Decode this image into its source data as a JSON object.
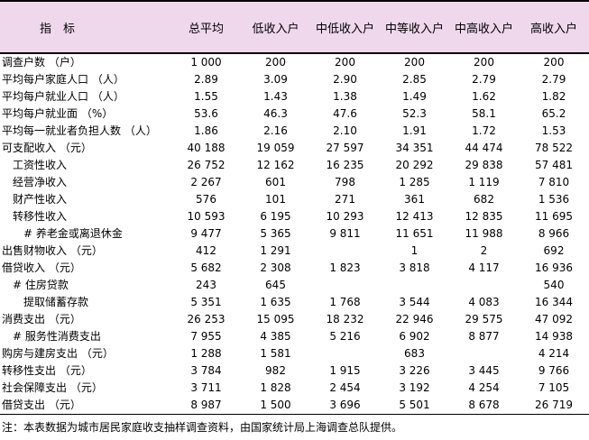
{
  "table": {
    "indicator_header": "指　标",
    "columns": [
      "总平均",
      "低收入户",
      "中低收入户",
      "中等收入户",
      "中高收入户",
      "高收入户"
    ],
    "rows": [
      {
        "label": "调查户数 （户）",
        "indent": 0,
        "values": [
          "1 000",
          "200",
          "200",
          "200",
          "200",
          "200"
        ]
      },
      {
        "label": "平均每户家庭人口 （人）",
        "indent": 0,
        "values": [
          "2.89",
          "3.09",
          "2.90",
          "2.85",
          "2.79",
          "2.79"
        ]
      },
      {
        "label": "平均每户就业人口 （人）",
        "indent": 0,
        "values": [
          "1.55",
          "1.43",
          "1.38",
          "1.49",
          "1.62",
          "1.82"
        ]
      },
      {
        "label": "平均每户就业面 （%）",
        "indent": 0,
        "values": [
          "53.6",
          "46.3",
          "47.6",
          "52.3",
          "58.1",
          "65.2"
        ]
      },
      {
        "label": "平均每一就业者负担人数 （人）",
        "indent": 0,
        "values": [
          "1.86",
          "2.16",
          "2.10",
          "1.91",
          "1.72",
          "1.53"
        ]
      },
      {
        "label": "可支配收入 （元）",
        "indent": 0,
        "values": [
          "40 188",
          "19 059",
          "27 597",
          "34 351",
          "44 474",
          "78 522"
        ]
      },
      {
        "label": "工资性收入",
        "indent": 1,
        "values": [
          "26 752",
          "12 162",
          "16 235",
          "20 292",
          "29 838",
          "57 481"
        ]
      },
      {
        "label": "经营净收入",
        "indent": 1,
        "values": [
          "2 267",
          "601",
          "798",
          "1 285",
          "1 119",
          "7 810"
        ]
      },
      {
        "label": "财产性收入",
        "indent": 1,
        "values": [
          "576",
          "101",
          "271",
          "361",
          "682",
          "1 536"
        ]
      },
      {
        "label": "转移性收入",
        "indent": 1,
        "values": [
          "10 593",
          "6 195",
          "10 293",
          "12 413",
          "12 835",
          "11 695"
        ]
      },
      {
        "label": "# 养老金或离退休金",
        "indent": 2,
        "values": [
          "9 477",
          "5 365",
          "9 811",
          "11 651",
          "11 988",
          "8 966"
        ]
      },
      {
        "label": "出售财物收入 （元）",
        "indent": 0,
        "values": [
          "412",
          "1 291",
          "",
          "1",
          "2",
          "692"
        ]
      },
      {
        "label": "借贷收入 （元）",
        "indent": 0,
        "values": [
          "5 682",
          "2 308",
          "1 823",
          "3 818",
          "4 117",
          "16 936"
        ]
      },
      {
        "label": "# 住房贷款",
        "indent": 1,
        "values": [
          "243",
          "645",
          "",
          "",
          "",
          "540"
        ]
      },
      {
        "label": "提取储蓄存款",
        "indent": 2,
        "values": [
          "5 351",
          "1 635",
          "1 768",
          "3 544",
          "4 083",
          "16 344"
        ]
      },
      {
        "label": "消费支出 （元）",
        "indent": 0,
        "values": [
          "26 253",
          "15 095",
          "18 232",
          "22 946",
          "29 575",
          "47 092"
        ]
      },
      {
        "label": "# 服务性消费支出",
        "indent": 1,
        "values": [
          "7 955",
          "4 385",
          "5 216",
          "6 902",
          "8 877",
          "14 938"
        ]
      },
      {
        "label": "购房与建房支出 （元）",
        "indent": 0,
        "values": [
          "1 288",
          "1 581",
          "",
          "683",
          "",
          "4 214"
        ]
      },
      {
        "label": "转移性支出 （元）",
        "indent": 0,
        "values": [
          "3 784",
          "982",
          "1 915",
          "3 226",
          "3 445",
          "9 766"
        ]
      },
      {
        "label": "社会保障支出 （元）",
        "indent": 0,
        "values": [
          "3 711",
          "1 828",
          "2 454",
          "3 192",
          "4 254",
          "7 105"
        ]
      },
      {
        "label": "借贷支出 （元）",
        "indent": 0,
        "values": [
          "8 987",
          "1 500",
          "3 696",
          "5 501",
          "8 678",
          "26 719"
        ]
      }
    ]
  },
  "note": "注：本表数据为城市居民家庭收支抽样调查资料，由国家统计局上海调查总队提供。",
  "colors": {
    "header_bg": "#f0d8ec",
    "border": "#000000",
    "text": "#000000"
  }
}
